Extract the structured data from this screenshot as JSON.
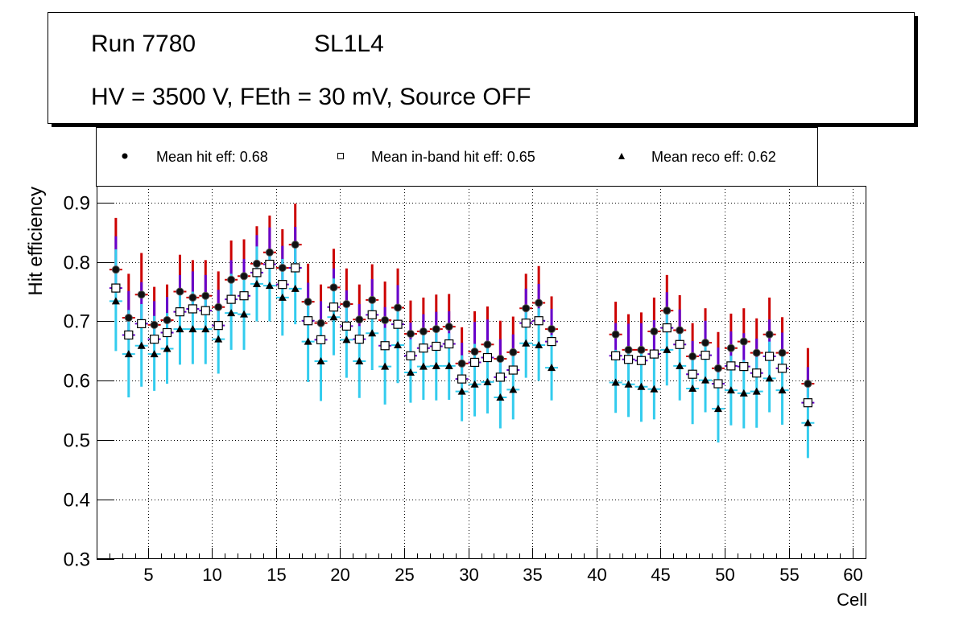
{
  "chart_data": {
    "type": "scatter",
    "title_lines": [
      "Run 7780",
      "SL1L4",
      "HV = 3500 V, FEth = 30 mV, Source OFF"
    ],
    "xlabel": "Cell",
    "ylabel": "Hit efficiency",
    "xlim": [
      1,
      61
    ],
    "ylim": [
      0.3,
      0.928
    ],
    "xticks": [
      5,
      10,
      15,
      20,
      25,
      30,
      35,
      40,
      45,
      50,
      55,
      60
    ],
    "yticks": [
      0.3,
      0.4,
      0.5,
      0.6,
      0.7,
      0.8,
      0.9
    ],
    "ytick_labels": [
      "0.3",
      "0.4",
      "0.5",
      "0.6",
      "0.7",
      "0.8",
      "0.9"
    ],
    "grid": true,
    "legend": {
      "placement": "top",
      "entries": [
        {
          "marker": "circle",
          "label": "Mean hit  eff: 0.68"
        },
        {
          "marker": "open-square",
          "label": "Mean in-band hit eff: 0.65"
        },
        {
          "marker": "triangle",
          "label": "Mean reco eff: 0.62"
        }
      ]
    },
    "colors": {
      "hit_err": "#cc0000",
      "inband_err": "#6600cc",
      "reco_err": "#33ccee"
    },
    "x": [
      2.5,
      3.5,
      4.5,
      5.5,
      6.5,
      7.5,
      8.5,
      9.5,
      10.5,
      11.5,
      12.5,
      13.5,
      14.5,
      15.5,
      16.5,
      17.5,
      18.5,
      19.5,
      20.5,
      21.5,
      22.5,
      23.5,
      24.5,
      25.5,
      26.5,
      27.5,
      28.5,
      29.5,
      30.5,
      31.5,
      32.5,
      33.5,
      34.5,
      35.5,
      36.5,
      41.5,
      42.5,
      43.5,
      44.5,
      45.5,
      46.5,
      47.5,
      48.5,
      49.5,
      50.5,
      51.5,
      52.5,
      53.5,
      54.5,
      56.5
    ],
    "series": [
      {
        "name": "Mean hit eff",
        "marker": "circle",
        "values": [
          0.787,
          0.706,
          0.745,
          0.694,
          0.702,
          0.75,
          0.74,
          0.743,
          0.724,
          0.77,
          0.776,
          0.797,
          0.816,
          0.79,
          0.829,
          0.733,
          0.697,
          0.757,
          0.729,
          0.703,
          0.736,
          0.702,
          0.723,
          0.679,
          0.683,
          0.687,
          0.691,
          0.629,
          0.649,
          0.661,
          0.637,
          0.648,
          0.722,
          0.731,
          0.687,
          0.678,
          0.652,
          0.652,
          0.683,
          0.718,
          0.685,
          0.641,
          0.664,
          0.621,
          0.655,
          0.666,
          0.647,
          0.678,
          0.647,
          0.595
        ],
        "err_high": [
          0.874,
          0.78,
          0.815,
          0.758,
          0.762,
          0.812,
          0.803,
          0.803,
          0.784,
          0.836,
          0.838,
          0.86,
          0.878,
          0.855,
          0.898,
          0.797,
          0.762,
          0.822,
          0.789,
          0.762,
          0.796,
          0.767,
          0.789,
          0.735,
          0.74,
          0.745,
          0.746,
          0.69,
          0.717,
          0.725,
          0.701,
          0.708,
          0.78,
          0.793,
          0.742,
          0.733,
          0.712,
          0.715,
          0.74,
          0.778,
          0.744,
          0.697,
          0.722,
          0.682,
          0.713,
          0.722,
          0.705,
          0.74,
          0.707,
          0.655
        ]
      },
      {
        "name": "Mean in-band hit eff",
        "marker": "open-square",
        "values": [
          0.756,
          0.677,
          0.696,
          0.67,
          0.681,
          0.716,
          0.721,
          0.718,
          0.693,
          0.737,
          0.743,
          0.782,
          0.796,
          0.762,
          0.79,
          0.701,
          0.669,
          0.724,
          0.692,
          0.67,
          0.711,
          0.659,
          0.695,
          0.642,
          0.655,
          0.658,
          0.662,
          0.603,
          0.631,
          0.639,
          0.606,
          0.618,
          0.697,
          0.701,
          0.666,
          0.642,
          0.636,
          0.634,
          0.645,
          0.689,
          0.661,
          0.611,
          0.643,
          0.595,
          0.625,
          0.624,
          0.613,
          0.641,
          0.621,
          0.563
        ]
      },
      {
        "name": "Mean reco eff",
        "marker": "triangle",
        "values": [
          0.734,
          0.645,
          0.659,
          0.645,
          0.654,
          0.687,
          0.687,
          0.687,
          0.67,
          0.714,
          0.712,
          0.763,
          0.76,
          0.74,
          0.755,
          0.666,
          0.633,
          0.707,
          0.669,
          0.633,
          0.68,
          0.624,
          0.66,
          0.614,
          0.624,
          0.625,
          0.625,
          0.582,
          0.594,
          0.598,
          0.572,
          0.585,
          0.663,
          0.66,
          0.622,
          0.597,
          0.594,
          0.59,
          0.586,
          0.652,
          0.625,
          0.587,
          0.601,
          0.553,
          0.584,
          0.579,
          0.582,
          0.604,
          0.584,
          0.529
        ],
        "err_low": [
          0.65,
          0.572,
          0.59,
          0.583,
          0.595,
          0.627,
          0.628,
          0.628,
          0.612,
          0.652,
          0.652,
          0.7,
          0.7,
          0.676,
          0.695,
          0.598,
          0.566,
          0.643,
          0.605,
          0.571,
          0.618,
          0.56,
          0.596,
          0.563,
          0.568,
          0.567,
          0.568,
          0.532,
          0.54,
          0.545,
          0.52,
          0.535,
          0.605,
          0.6,
          0.567,
          0.546,
          0.539,
          0.531,
          0.535,
          0.592,
          0.567,
          0.527,
          0.547,
          0.496,
          0.525,
          0.52,
          0.521,
          0.547,
          0.526,
          0.47
        ]
      }
    ]
  }
}
